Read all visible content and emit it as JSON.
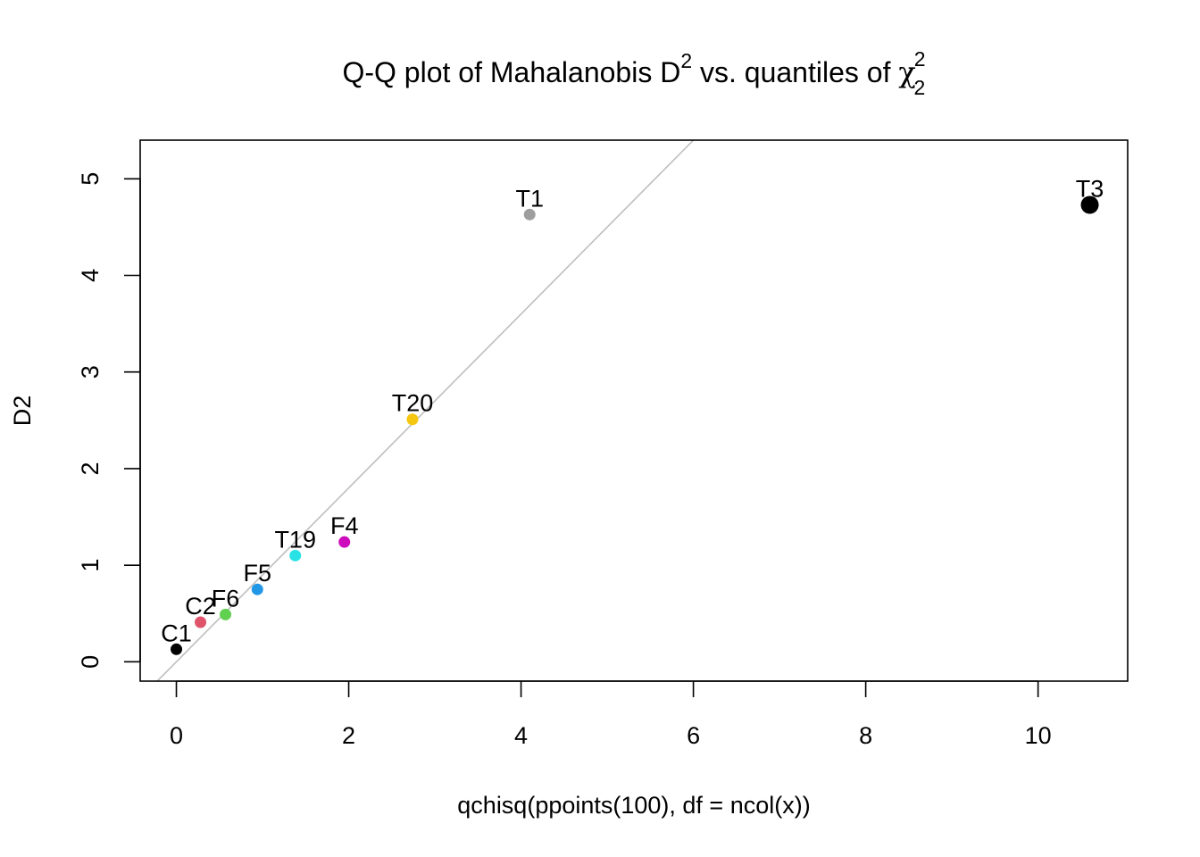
{
  "chart_data": {
    "type": "scatter",
    "title": {
      "main": "Q-Q plot of Mahalanobis D",
      "sup_d": "2",
      "mid": " vs. quantiles of ",
      "chi": "χ",
      "chi_sup": "2",
      "chi_sub": "2"
    },
    "xlabel": "qchisq(ppoints(100), df = ncol(x))",
    "ylabel": "D2",
    "xlim": [
      -0.42,
      11.04
    ],
    "ylim": [
      -0.2,
      5.4
    ],
    "xticks": [
      0,
      2,
      4,
      6,
      8,
      10
    ],
    "yticks": [
      0,
      1,
      2,
      3,
      4,
      5
    ],
    "grid": false,
    "reference_line": {
      "intercept": 0,
      "slope": 0.9,
      "color": "#BEBEBE"
    },
    "points": [
      {
        "label": "C1",
        "x": 0.0,
        "y": 0.13,
        "color": "#000000"
      },
      {
        "label": "C2",
        "x": 0.28,
        "y": 0.41,
        "color": "#DF536B"
      },
      {
        "label": "F6",
        "x": 0.57,
        "y": 0.49,
        "color": "#61D04F"
      },
      {
        "label": "F5",
        "x": 0.94,
        "y": 0.75,
        "color": "#2297E6"
      },
      {
        "label": "T19",
        "x": 1.38,
        "y": 1.1,
        "color": "#28E2E5"
      },
      {
        "label": "F4",
        "x": 1.95,
        "y": 1.24,
        "color": "#CD0BBC"
      },
      {
        "label": "T20",
        "x": 2.74,
        "y": 2.51,
        "color": "#F5C710"
      },
      {
        "label": "T1",
        "x": 4.1,
        "y": 4.63,
        "color": "#9E9E9E"
      },
      {
        "label": "T3",
        "x": 10.6,
        "y": 4.73,
        "color": "#000000",
        "large": true
      }
    ]
  }
}
